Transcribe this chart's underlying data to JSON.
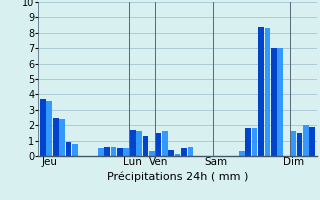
{
  "title": "",
  "xlabel": "Précipitations 24h ( mm )",
  "ylabel": "",
  "ylim": [
    0,
    10
  ],
  "background_color": "#d8f0f0",
  "bar_color_dark": "#0044cc",
  "bar_color_light": "#3399ff",
  "grid_color": "#99bbcc",
  "bar_values": [
    3.7,
    3.6,
    2.5,
    2.4,
    0.9,
    0.8,
    0.0,
    0.0,
    0.0,
    0.5,
    0.6,
    0.6,
    0.5,
    0.5,
    1.7,
    1.6,
    1.3,
    0.3,
    1.5,
    1.6,
    0.4,
    0.1,
    0.5,
    0.6,
    0.0,
    0.0,
    0.0,
    0.0,
    0.0,
    0.0,
    0.0,
    0.3,
    1.8,
    1.8,
    8.4,
    8.3,
    7.0,
    7.0,
    0.0,
    1.6,
    1.5,
    2.0,
    1.9
  ],
  "day_labels": [
    "Jeu",
    "Lun",
    "Ven",
    "Sam",
    "Dim"
  ],
  "day_positions": [
    1,
    14,
    18,
    27,
    39
  ],
  "vline_positions": [
    13.5,
    17.5,
    26.5,
    38.5
  ],
  "xlabel_fontsize": 8,
  "tick_fontsize": 7,
  "label_fontsize": 7.5
}
